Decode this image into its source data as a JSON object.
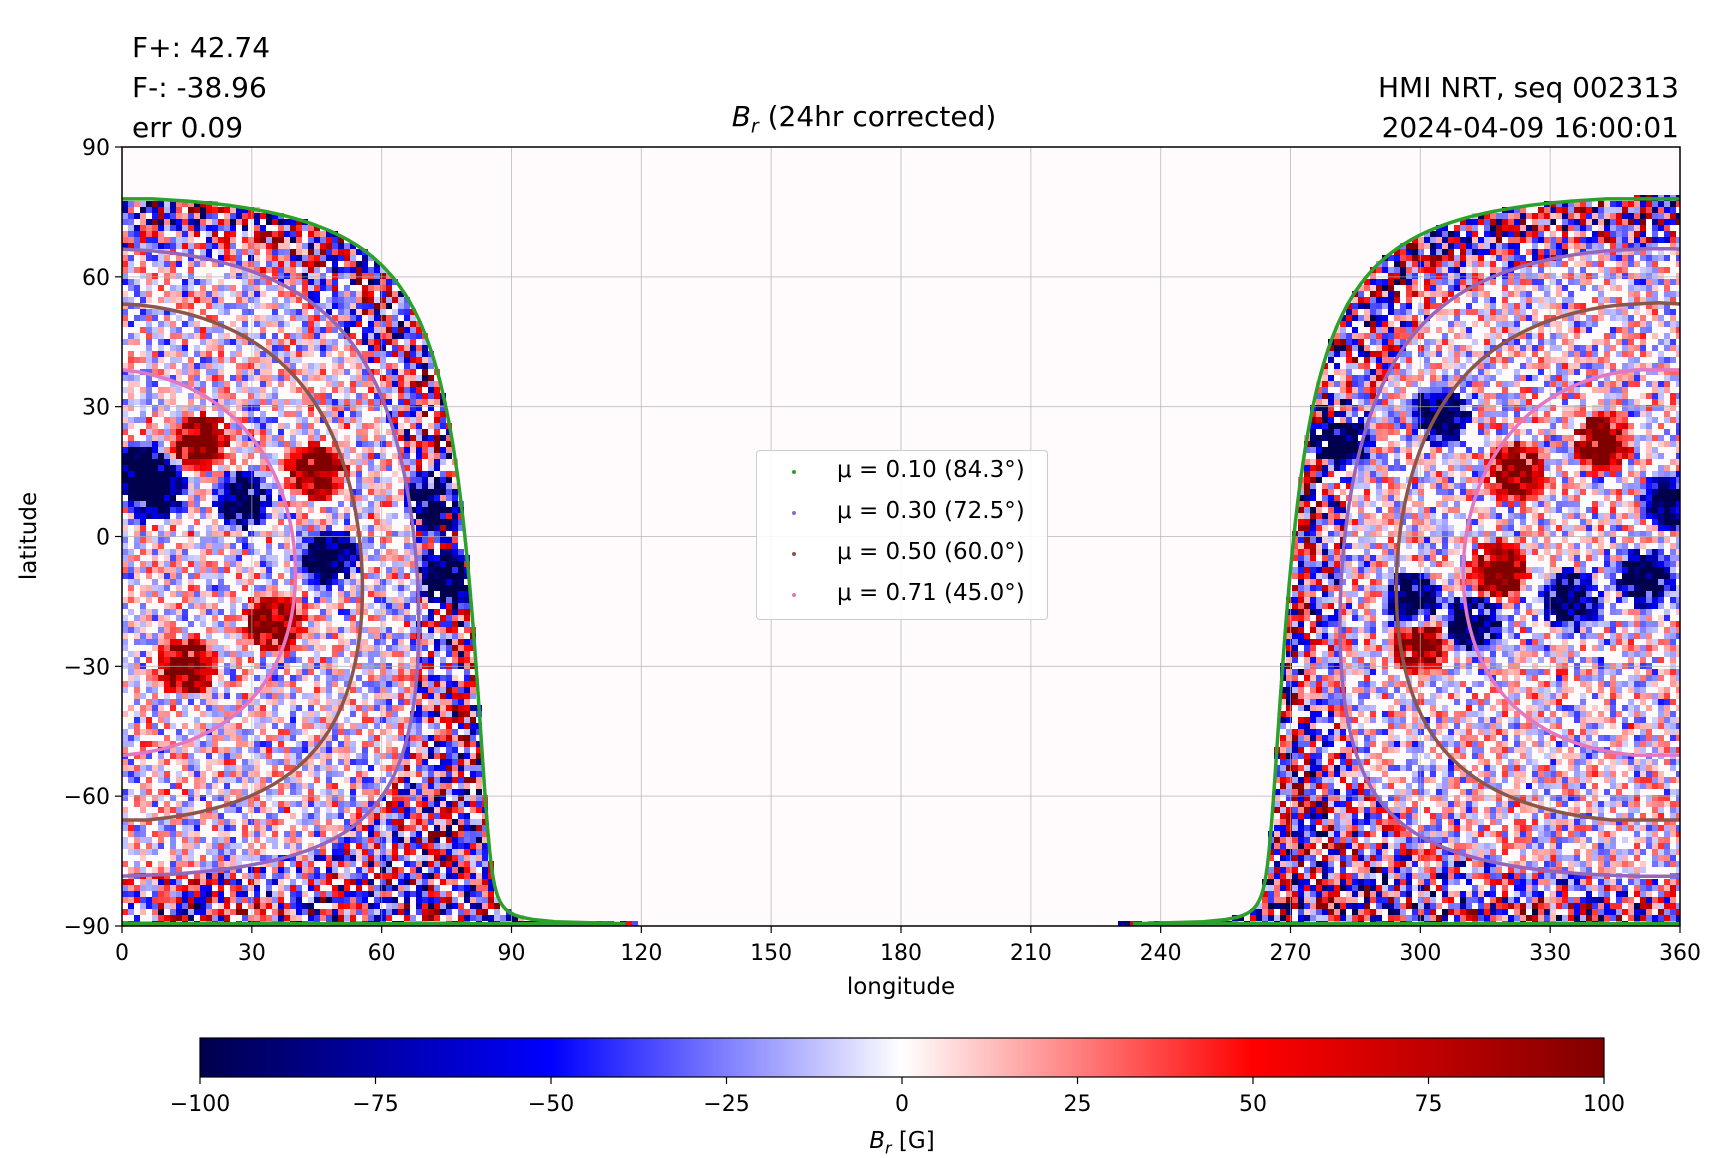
{
  "annotations": {
    "flux_pos": "F+: 42.74",
    "flux_neg": "F-: -38.96",
    "err": "err 0.09",
    "source": "HMI NRT, seq 002313",
    "timestamp": "2024-04-09 16:00:01"
  },
  "chart_data": {
    "type": "heatmap",
    "title_symbol": "B",
    "title_subscript": "r",
    "title_rest": " (24hr corrected)",
    "xlabel": "longitude",
    "ylabel": "latitude",
    "xlim": [
      0,
      360
    ],
    "ylim": [
      -90,
      90
    ],
    "xticks": [
      0,
      30,
      60,
      90,
      120,
      150,
      180,
      210,
      240,
      270,
      300,
      330,
      360
    ],
    "yticks": [
      -90,
      -60,
      -30,
      0,
      30,
      60,
      90
    ],
    "ytick_labels": [
      "−90",
      "−60",
      "−30",
      "0",
      "30",
      "60",
      "90"
    ],
    "grid": true,
    "colormap": "seismic",
    "colorbar": {
      "range": [
        -100,
        100
      ],
      "ticks": [
        "−100",
        "−75",
        "−50",
        "−25",
        "0",
        "25",
        "50",
        "75",
        "100"
      ],
      "label_symbol": "B",
      "label_subscript": "r",
      "label_rest": " [G]"
    },
    "observed_region": {
      "center_longitude": 355,
      "center_latitude": -6,
      "visible_longitude_ranges": [
        [
          0,
          84
        ],
        [
          265,
          360
        ]
      ]
    },
    "legend_position": "center",
    "series": [
      {
        "name": "μ = 0.10 (84.3°)",
        "mu": 0.1,
        "angle_deg": 84.3,
        "color": "#2ca02c"
      },
      {
        "name": "μ = 0.30 (72.5°)",
        "mu": 0.3,
        "angle_deg": 72.5,
        "color": "#9467bd"
      },
      {
        "name": "μ = 0.50 (60.0°)",
        "mu": 0.5,
        "angle_deg": 60.0,
        "color": "#8c564b"
      },
      {
        "name": "μ = 0.71 (45.0°)",
        "mu": 0.71,
        "angle_deg": 45.0,
        "color": "#e377c2"
      }
    ]
  }
}
